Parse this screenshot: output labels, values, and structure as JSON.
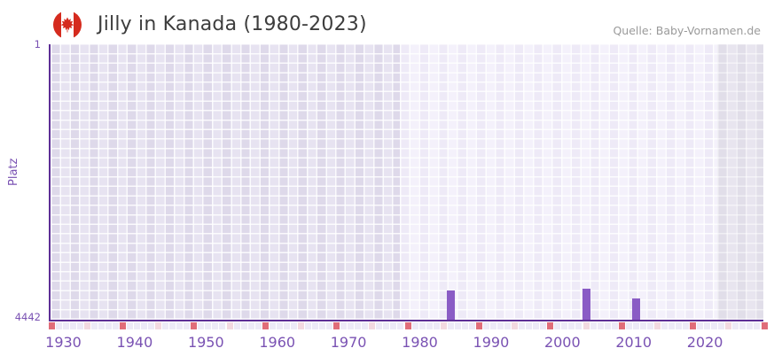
{
  "header": {
    "title": "Jilly in Kanada (1980-2023)",
    "source": "Quelle: Baby-Vornamen.de",
    "flag": "canada-flag-icon"
  },
  "chart_data": {
    "type": "bar",
    "title": "Jilly in Kanada (1980-2023)",
    "ylabel": "Platz",
    "xlabel": "",
    "grid": "checkerboard",
    "legend": "none",
    "y_axis": {
      "label": "Platz",
      "top_tick": "1",
      "bottom_tick": "4442",
      "min": 1,
      "max": 4442,
      "inverted": true
    },
    "x_axis": {
      "min_year": 1930,
      "max_year": 2030,
      "ticks": [
        1930,
        1940,
        1950,
        1960,
        1970,
        1980,
        1990,
        2000,
        2010,
        2020
      ]
    },
    "bars": [
      {
        "year": 1986,
        "rank": 3971
      },
      {
        "year": 2005,
        "rank": 3942
      },
      {
        "year": 2012,
        "rank": 4095
      }
    ],
    "background_bands": [
      {
        "from": 1930,
        "to": 1979,
        "shade": "medium"
      },
      {
        "from": 1979,
        "to": 2023.5,
        "shade": "light"
      },
      {
        "from": 2023.5,
        "to": 2030,
        "shade": "dark"
      }
    ],
    "year_strip": {
      "decade_color": "#e06d79",
      "half_decade_color": "#f3d9e0",
      "default_color": "#edeaf7"
    }
  },
  "colors": {
    "bar": "#8a5cc5",
    "axis": "#5e2f96",
    "tick_text": "#7a52b3",
    "title_text": "#3d3d3d",
    "source_text": "#9a9a9a",
    "band_medium": "#ded9ea",
    "band_medium_alt": "#e7e3f1",
    "band_light": "#eeeaf7",
    "band_light_alt": "#f4f1fb",
    "band_dark": "#e1dee9",
    "band_dark_alt": "#e8e5ef",
    "flag_red": "#d52b1e"
  }
}
